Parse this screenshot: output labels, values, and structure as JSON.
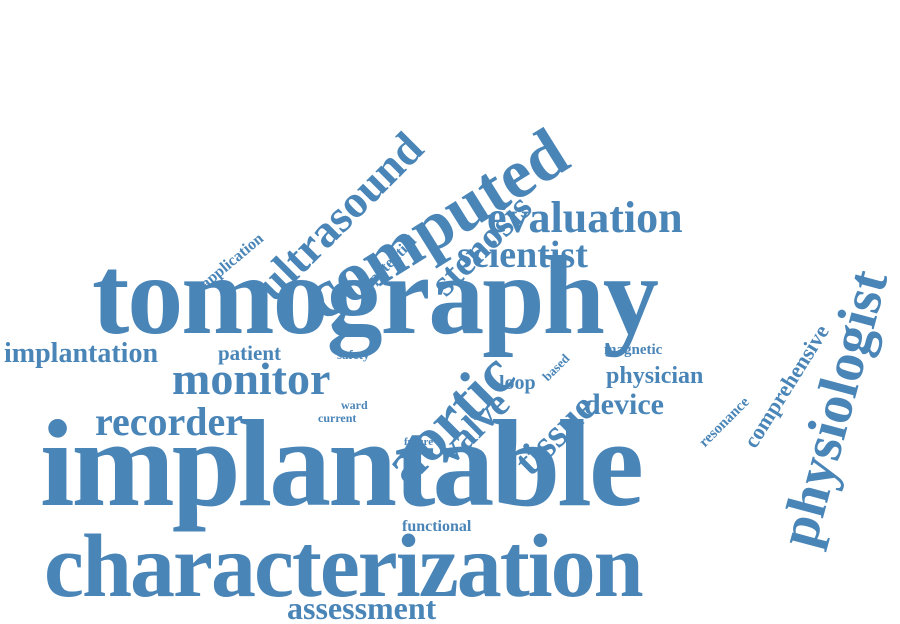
{
  "color": "#4a85b8",
  "words": {
    "tomography": "tomography",
    "implantable": "implantable",
    "characterization": "characterization",
    "computed": "computed",
    "physiologist": "physiologist",
    "ultrasound": "ultrasound",
    "evaluation": "evaluation",
    "stenosis": "stenosis",
    "scientist": "scientist",
    "aortic": "aortic",
    "monitor": "monitor",
    "recorder": "recorder",
    "implantation": "implantation",
    "valve": "valve",
    "tissue": "tissue",
    "device": "device",
    "physician": "physician",
    "assessment": "assessment",
    "comprehensive": "comprehensive",
    "potential": "potential",
    "application": "application",
    "patient": "patient",
    "safety": "safety",
    "ward": "ward",
    "current": "current",
    "loop": "loop",
    "based": "based",
    "magnetic": "magnetic",
    "resonance": "resonance",
    "future": "future",
    "functional": "functional"
  }
}
